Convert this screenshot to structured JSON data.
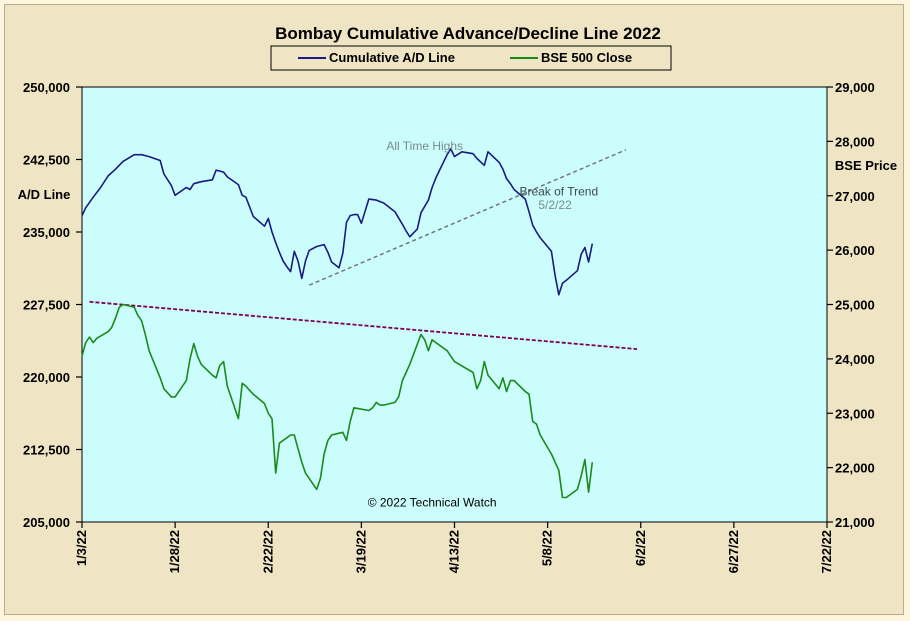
{
  "chart_data": {
    "type": "line",
    "title": "Bombay Cumulative Advance/Decline Line 2022",
    "legend": {
      "placement": "top-center",
      "entries": [
        {
          "name": "Cumulative A/D Line",
          "color": "#1a1a80"
        },
        {
          "name": "BSE 500 Close",
          "color": "#1a8a1a"
        }
      ]
    },
    "left_axis": {
      "label": "A/D Line",
      "range": [
        205000,
        250000
      ],
      "ticks": [
        205000,
        212500,
        220000,
        227500,
        235000,
        242500,
        250000
      ],
      "tick_labels": [
        "205,000",
        "212,500",
        "220,000",
        "227,500",
        "235,000",
        "242,500",
        "250,000"
      ]
    },
    "right_axis": {
      "label": "BSE Price",
      "range": [
        21000,
        29000
      ],
      "ticks": [
        21000,
        22000,
        23000,
        24000,
        25000,
        26000,
        27000,
        28000,
        29000
      ],
      "tick_labels": [
        "21,000",
        "22,000",
        "23,000",
        "24,000",
        "25,000",
        "26,000",
        "27,000",
        "28,000",
        "29,000"
      ]
    },
    "x_axis": {
      "range": [
        "2022-01-03",
        "2022-07-22"
      ],
      "ticks": [
        "2022-01-03",
        "2022-01-28",
        "2022-02-22",
        "2022-03-19",
        "2022-04-13",
        "2022-05-08",
        "2022-06-02",
        "2022-06-27",
        "2022-07-22"
      ],
      "tick_labels": [
        "1/3/22",
        "1/28/22",
        "2/22/22",
        "3/19/22",
        "4/13/22",
        "5/8/22",
        "6/2/22",
        "6/27/22",
        "7/22/22"
      ]
    },
    "grid": false,
    "background": "#ccfdfd",
    "series": [
      {
        "name": "Cumulative A/D Line",
        "axis": "left",
        "color": "#1a1a80",
        "points": [
          [
            "2022-01-03",
            236700
          ],
          [
            "2022-01-04",
            237500
          ],
          [
            "2022-01-06",
            238600
          ],
          [
            "2022-01-08",
            239600
          ],
          [
            "2022-01-10",
            240800
          ],
          [
            "2022-01-12",
            241500
          ],
          [
            "2022-01-14",
            242300
          ],
          [
            "2022-01-17",
            243000
          ],
          [
            "2022-01-19",
            243000
          ],
          [
            "2022-01-21",
            242800
          ],
          [
            "2022-01-24",
            242400
          ],
          [
            "2022-01-25",
            241000
          ],
          [
            "2022-01-27",
            239800
          ],
          [
            "2022-01-28",
            238800
          ],
          [
            "2022-01-31",
            239600
          ],
          [
            "2022-02-01",
            239400
          ],
          [
            "2022-02-02",
            240000
          ],
          [
            "2022-02-04",
            240200
          ],
          [
            "2022-02-07",
            240400
          ],
          [
            "2022-02-08",
            241400
          ],
          [
            "2022-02-10",
            241200
          ],
          [
            "2022-02-11",
            240700
          ],
          [
            "2022-02-14",
            239900
          ],
          [
            "2022-02-15",
            238800
          ],
          [
            "2022-02-16",
            238600
          ],
          [
            "2022-02-17",
            237600
          ],
          [
            "2022-02-18",
            236600
          ],
          [
            "2022-02-21",
            235600
          ],
          [
            "2022-02-22",
            236400
          ],
          [
            "2022-02-23",
            235000
          ],
          [
            "2022-02-24",
            233900
          ],
          [
            "2022-02-25",
            232900
          ],
          [
            "2022-02-26",
            232000
          ],
          [
            "2022-02-27",
            231400
          ],
          [
            "2022-02-28",
            230900
          ],
          [
            "2022-03-01",
            233000
          ],
          [
            "2022-03-02",
            232000
          ],
          [
            "2022-03-03",
            230200
          ],
          [
            "2022-03-04",
            232000
          ],
          [
            "2022-03-05",
            233100
          ],
          [
            "2022-03-07",
            233500
          ],
          [
            "2022-03-09",
            233700
          ],
          [
            "2022-03-10",
            232900
          ],
          [
            "2022-03-11",
            231900
          ],
          [
            "2022-03-13",
            231300
          ],
          [
            "2022-03-14",
            232800
          ],
          [
            "2022-03-15",
            236000
          ],
          [
            "2022-03-16",
            236700
          ],
          [
            "2022-03-17",
            236800
          ],
          [
            "2022-03-18",
            236800
          ],
          [
            "2022-03-19",
            235900
          ],
          [
            "2022-03-21",
            238400
          ],
          [
            "2022-03-23",
            238300
          ],
          [
            "2022-03-25",
            238000
          ],
          [
            "2022-03-28",
            237100
          ],
          [
            "2022-03-30",
            235800
          ],
          [
            "2022-03-31",
            235100
          ],
          [
            "2022-04-01",
            234500
          ],
          [
            "2022-04-03",
            235300
          ],
          [
            "2022-04-04",
            237000
          ],
          [
            "2022-04-06",
            238300
          ],
          [
            "2022-04-07",
            239600
          ],
          [
            "2022-04-08",
            240600
          ],
          [
            "2022-04-09",
            241400
          ],
          [
            "2022-04-11",
            243000
          ],
          [
            "2022-04-12",
            243600
          ],
          [
            "2022-04-13",
            242800
          ],
          [
            "2022-04-15",
            243300
          ],
          [
            "2022-04-18",
            243100
          ],
          [
            "2022-04-19",
            242600
          ],
          [
            "2022-04-21",
            241900
          ],
          [
            "2022-04-22",
            243300
          ],
          [
            "2022-04-25",
            242200
          ],
          [
            "2022-04-26",
            241500
          ],
          [
            "2022-04-27",
            240500
          ],
          [
            "2022-04-28",
            240000
          ],
          [
            "2022-04-29",
            239400
          ],
          [
            "2022-05-02",
            238400
          ],
          [
            "2022-05-03",
            237100
          ],
          [
            "2022-05-04",
            235700
          ],
          [
            "2022-05-05",
            235000
          ],
          [
            "2022-05-06",
            234400
          ],
          [
            "2022-05-09",
            233000
          ],
          [
            "2022-05-10",
            230500
          ],
          [
            "2022-05-11",
            228500
          ],
          [
            "2022-05-12",
            229700
          ],
          [
            "2022-05-13",
            230000
          ],
          [
            "2022-05-16",
            231000
          ],
          [
            "2022-05-17",
            232700
          ],
          [
            "2022-05-18",
            233400
          ],
          [
            "2022-05-19",
            231900
          ],
          [
            "2022-05-20",
            233800
          ]
        ]
      },
      {
        "name": "BSE 500 Close",
        "axis": "right",
        "color": "#1a8a1a",
        "points": [
          [
            "2022-01-03",
            24050
          ],
          [
            "2022-01-04",
            24300
          ],
          [
            "2022-01-05",
            24400
          ],
          [
            "2022-01-06",
            24300
          ],
          [
            "2022-01-07",
            24380
          ],
          [
            "2022-01-10",
            24500
          ],
          [
            "2022-01-11",
            24580
          ],
          [
            "2022-01-12",
            24750
          ],
          [
            "2022-01-13",
            24950
          ],
          [
            "2022-01-14",
            25000
          ],
          [
            "2022-01-17",
            24950
          ],
          [
            "2022-01-18",
            24800
          ],
          [
            "2022-01-19",
            24700
          ],
          [
            "2022-01-20",
            24450
          ],
          [
            "2022-01-21",
            24150
          ],
          [
            "2022-01-24",
            23650
          ],
          [
            "2022-01-25",
            23450
          ],
          [
            "2022-01-27",
            23300
          ],
          [
            "2022-01-28",
            23300
          ],
          [
            "2022-01-31",
            23600
          ],
          [
            "2022-02-01",
            24000
          ],
          [
            "2022-02-02",
            24280
          ],
          [
            "2022-02-03",
            24050
          ],
          [
            "2022-02-04",
            23900
          ],
          [
            "2022-02-07",
            23700
          ],
          [
            "2022-02-08",
            23650
          ],
          [
            "2022-02-09",
            23880
          ],
          [
            "2022-02-10",
            23950
          ],
          [
            "2022-02-11",
            23500
          ],
          [
            "2022-02-14",
            22900
          ],
          [
            "2022-02-15",
            23550
          ],
          [
            "2022-02-16",
            23500
          ],
          [
            "2022-02-17",
            23420
          ],
          [
            "2022-02-18",
            23350
          ],
          [
            "2022-02-21",
            23180
          ],
          [
            "2022-02-22",
            23000
          ],
          [
            "2022-02-23",
            22900
          ],
          [
            "2022-02-24",
            21900
          ],
          [
            "2022-02-25",
            22450
          ],
          [
            "2022-02-28",
            22600
          ],
          [
            "2022-03-01",
            22600
          ],
          [
            "2022-03-02",
            22350
          ],
          [
            "2022-03-03",
            22100
          ],
          [
            "2022-03-04",
            21900
          ],
          [
            "2022-03-07",
            21600
          ],
          [
            "2022-03-08",
            21800
          ],
          [
            "2022-03-09",
            22250
          ],
          [
            "2022-03-10",
            22500
          ],
          [
            "2022-03-11",
            22600
          ],
          [
            "2022-03-14",
            22650
          ],
          [
            "2022-03-15",
            22500
          ],
          [
            "2022-03-16",
            22850
          ],
          [
            "2022-03-17",
            23100
          ],
          [
            "2022-03-21",
            23050
          ],
          [
            "2022-03-22",
            23100
          ],
          [
            "2022-03-23",
            23200
          ],
          [
            "2022-03-24",
            23150
          ],
          [
            "2022-03-25",
            23150
          ],
          [
            "2022-03-28",
            23200
          ],
          [
            "2022-03-29",
            23300
          ],
          [
            "2022-03-30",
            23600
          ],
          [
            "2022-03-31",
            23750
          ],
          [
            "2022-04-01",
            23900
          ],
          [
            "2022-04-04",
            24450
          ],
          [
            "2022-04-05",
            24350
          ],
          [
            "2022-04-06",
            24150
          ],
          [
            "2022-04-07",
            24350
          ],
          [
            "2022-04-08",
            24300
          ],
          [
            "2022-04-11",
            24150
          ],
          [
            "2022-04-12",
            24050
          ],
          [
            "2022-04-13",
            23950
          ],
          [
            "2022-04-18",
            23750
          ],
          [
            "2022-04-19",
            23450
          ],
          [
            "2022-04-20",
            23600
          ],
          [
            "2022-04-21",
            23950
          ],
          [
            "2022-04-22",
            23700
          ],
          [
            "2022-04-25",
            23450
          ],
          [
            "2022-04-26",
            23650
          ],
          [
            "2022-04-27",
            23400
          ],
          [
            "2022-04-28",
            23600
          ],
          [
            "2022-04-29",
            23600
          ],
          [
            "2022-05-02",
            23400
          ],
          [
            "2022-05-03",
            23350
          ],
          [
            "2022-05-04",
            22850
          ],
          [
            "2022-05-05",
            22800
          ],
          [
            "2022-05-06",
            22600
          ],
          [
            "2022-05-09",
            22250
          ],
          [
            "2022-05-10",
            22100
          ],
          [
            "2022-05-11",
            21950
          ],
          [
            "2022-05-12",
            21450
          ],
          [
            "2022-05-13",
            21450
          ],
          [
            "2022-05-16",
            21600
          ],
          [
            "2022-05-17",
            21850
          ],
          [
            "2022-05-18",
            22150
          ],
          [
            "2022-05-19",
            21550
          ],
          [
            "2022-05-20",
            22100
          ]
        ]
      }
    ],
    "trendlines": [
      {
        "kind": "resistance",
        "axis": "right",
        "color": "#800050",
        "start": [
          "2022-01-05",
          25050
        ],
        "end": [
          "2022-06-01",
          24180
        ]
      },
      {
        "kind": "support",
        "axis": "left",
        "color": "#6a7070",
        "start": [
          "2022-03-05",
          229500
        ],
        "end": [
          "2022-05-29",
          243500
        ]
      }
    ],
    "annotations": [
      {
        "text": "All Time Highs",
        "x": "2022-04-05",
        "y": 243500,
        "axis": "left"
      },
      {
        "text": "Break of Trend",
        "x": "2022-05-11",
        "y": 238800,
        "axis": "left"
      },
      {
        "text": "5/2/22",
        "x": "2022-05-10",
        "y": 237400,
        "axis": "left"
      },
      {
        "text": "© 2022 Technical Watch",
        "x": "2022-04-07",
        "y": 206600,
        "axis": "left"
      }
    ]
  }
}
